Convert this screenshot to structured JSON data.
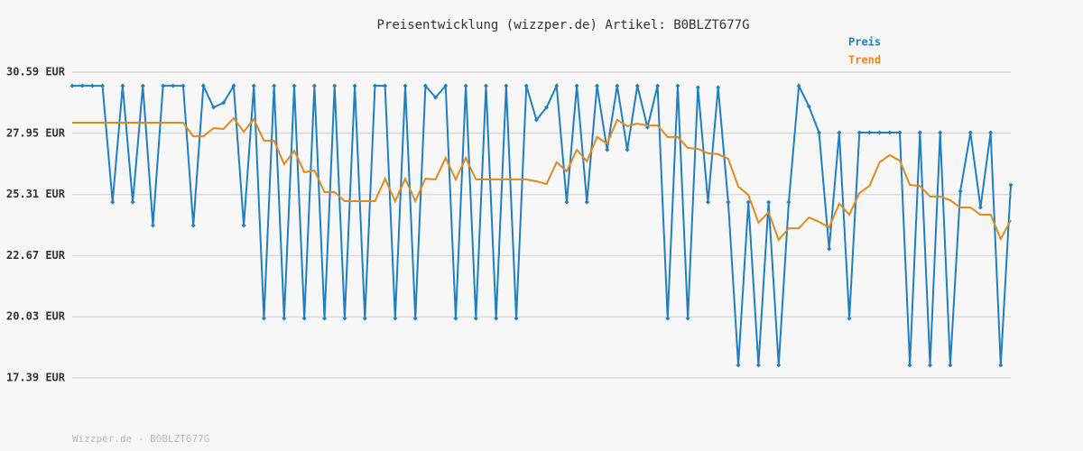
{
  "chart_data": {
    "type": "line",
    "title": "Preisentwicklung (wizzper.de) Artikel: B0BLZT677G",
    "source": "Wizzper.de - B0BLZT677G",
    "categories": [
      null,
      null,
      null,
      null,
      null,
      null,
      null,
      null,
      null,
      null,
      null,
      null,
      null,
      null,
      null,
      null,
      null,
      null,
      null,
      null,
      null,
      null,
      null,
      null,
      null,
      null,
      null,
      null,
      null,
      null,
      null,
      null,
      null,
      null,
      null,
      null,
      null,
      null,
      null,
      null,
      null,
      null,
      null,
      null,
      null,
      null,
      null,
      null,
      null,
      null,
      null,
      null,
      null,
      null,
      null,
      null,
      null,
      null,
      null,
      null,
      null,
      null,
      null,
      null,
      null,
      null,
      null,
      null,
      null,
      null,
      null,
      null,
      null,
      null,
      null,
      null,
      null,
      null,
      null,
      null,
      null,
      null,
      null,
      null,
      null,
      null,
      null,
      null,
      null,
      null,
      null,
      null,
      null,
      null
    ],
    "ylim": [
      17.39,
      30.59
    ],
    "yticks": [
      {
        "value": 17.39,
        "label": "17.39 EUR"
      },
      {
        "value": 20.03,
        "label": "20.03 EUR"
      },
      {
        "value": 22.67,
        "label": "22.67 EUR"
      },
      {
        "value": 25.31,
        "label": "25.31 EUR"
      },
      {
        "value": 27.95,
        "label": "27.95 EUR"
      },
      {
        "value": 30.59,
        "label": "30.59 EUR"
      }
    ],
    "grid": true,
    "legend": "top-right",
    "series": [
      {
        "name": "Preis",
        "color": "#1f7fbf",
        "markers": true,
        "values": [
          30.0,
          30.0,
          30.0,
          30.0,
          24.98,
          30.0,
          24.98,
          30.0,
          23.97,
          30.0,
          30.0,
          30.0,
          23.97,
          30.0,
          29.07,
          29.27,
          30.0,
          23.97,
          30.0,
          19.96,
          30.0,
          19.96,
          30.0,
          19.96,
          30.0,
          19.96,
          30.0,
          19.96,
          30.0,
          19.96,
          30.0,
          30.0,
          19.96,
          30.0,
          19.96,
          30.0,
          29.5,
          30.0,
          19.96,
          30.0,
          19.96,
          30.0,
          19.96,
          30.0,
          19.96,
          30.0,
          28.53,
          29.07,
          30.0,
          24.98,
          30.0,
          24.98,
          30.0,
          27.24,
          30.0,
          27.24,
          30.0,
          28.21,
          30.0,
          19.96,
          30.0,
          19.96,
          29.93,
          24.98,
          29.93,
          24.98,
          17.94,
          24.98,
          17.94,
          24.98,
          17.94,
          24.98,
          30.0,
          29.11,
          27.98,
          22.96,
          27.98,
          19.96,
          27.98,
          27.98,
          27.98,
          27.98,
          27.98,
          17.94,
          27.98,
          17.94,
          27.98,
          17.94,
          25.45,
          27.98,
          24.75,
          27.98,
          17.94,
          25.72
        ]
      },
      {
        "name": "Trend",
        "color": "#e08a1e",
        "markers": false,
        "values": [
          28.41,
          28.41,
          28.41,
          28.41,
          28.41,
          28.41,
          28.41,
          28.41,
          28.41,
          28.41,
          28.41,
          28.41,
          27.82,
          27.82,
          28.17,
          28.14,
          28.6,
          28.02,
          28.56,
          27.63,
          27.63,
          26.62,
          27.2,
          26.27,
          26.35,
          25.41,
          25.41,
          25.02,
          25.02,
          25.02,
          25.02,
          25.99,
          25.02,
          25.99,
          25.02,
          25.99,
          25.96,
          26.89,
          25.96,
          26.89,
          25.96,
          25.96,
          25.96,
          25.96,
          25.96,
          25.96,
          25.88,
          25.76,
          26.7,
          26.31,
          27.24,
          26.74,
          27.79,
          27.51,
          28.53,
          28.26,
          28.37,
          28.29,
          28.29,
          27.79,
          27.79,
          27.32,
          27.28,
          27.09,
          27.05,
          26.85,
          25.65,
          25.29,
          24.09,
          24.55,
          23.35,
          23.85,
          23.85,
          24.32,
          24.13,
          23.89,
          24.91,
          24.44,
          25.37,
          25.68,
          26.7,
          27.01,
          26.77,
          25.72,
          25.68,
          25.22,
          25.22,
          25.06,
          24.75,
          24.75,
          24.44,
          24.44,
          23.39,
          24.2
        ]
      }
    ]
  }
}
